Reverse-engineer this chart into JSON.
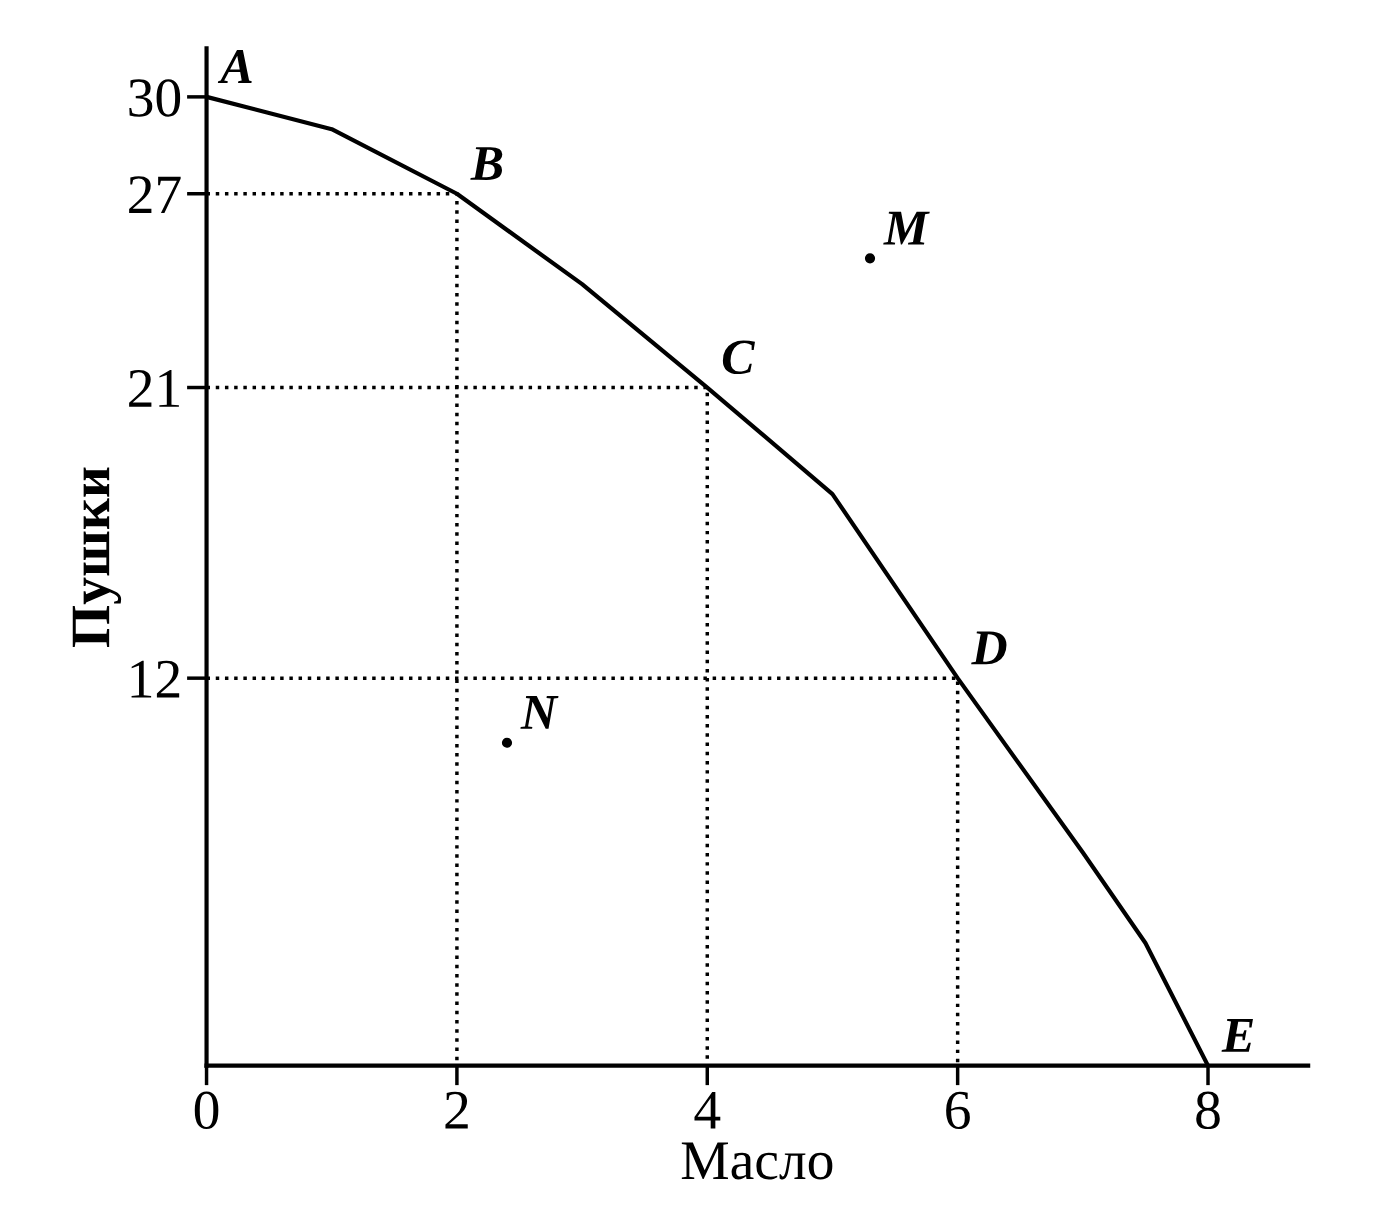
{
  "chart_data": {
    "type": "line",
    "xlabel": "Масло",
    "ylabel": "Пушки",
    "xlim": [
      0,
      8.8
    ],
    "ylim": [
      0,
      31.5
    ],
    "xticks": [
      0,
      2,
      4,
      6,
      8
    ],
    "yticks": [
      12,
      21,
      27,
      30
    ],
    "grid": false,
    "legend": false,
    "tick_labels": "xy",
    "series": [
      {
        "color": "#000000",
        "x": [
          0,
          1,
          2,
          3,
          4,
          5,
          6,
          7,
          7.5,
          8
        ],
        "values": [
          30,
          29,
          27,
          24.2,
          21,
          17.7,
          12,
          6.6,
          3.8,
          0
        ],
        "line_style": "solid",
        "marker": "none"
      },
      {
        "color": "#000000",
        "x": [
          0,
          2,
          2
        ],
        "values": [
          27,
          27,
          0
        ],
        "line_style": "dotted",
        "marker": "none"
      },
      {
        "color": "#000000",
        "x": [
          0,
          4,
          4
        ],
        "values": [
          21,
          21,
          0
        ],
        "line_style": "dotted",
        "marker": "none"
      },
      {
        "color": "#000000",
        "x": [
          0,
          6,
          6
        ],
        "values": [
          12,
          12,
          0
        ],
        "line_style": "dotted",
        "marker": "none"
      },
      {
        "type": "scatter",
        "color": "#000000",
        "x": [
          5.3,
          2.4
        ],
        "values": [
          25,
          10
        ],
        "marker": "circle"
      }
    ],
    "annotations": [
      {
        "text": "A",
        "x": 0,
        "y": 30
      },
      {
        "text": "B",
        "x": 2,
        "y": 27
      },
      {
        "text": "C",
        "x": 4,
        "y": 21
      },
      {
        "text": "D",
        "x": 6,
        "y": 12
      },
      {
        "text": "E",
        "x": 8,
        "y": 0
      },
      {
        "text": "M",
        "x": 5.3,
        "y": 25
      },
      {
        "text": "N",
        "x": 2.4,
        "y": 10
      }
    ]
  }
}
